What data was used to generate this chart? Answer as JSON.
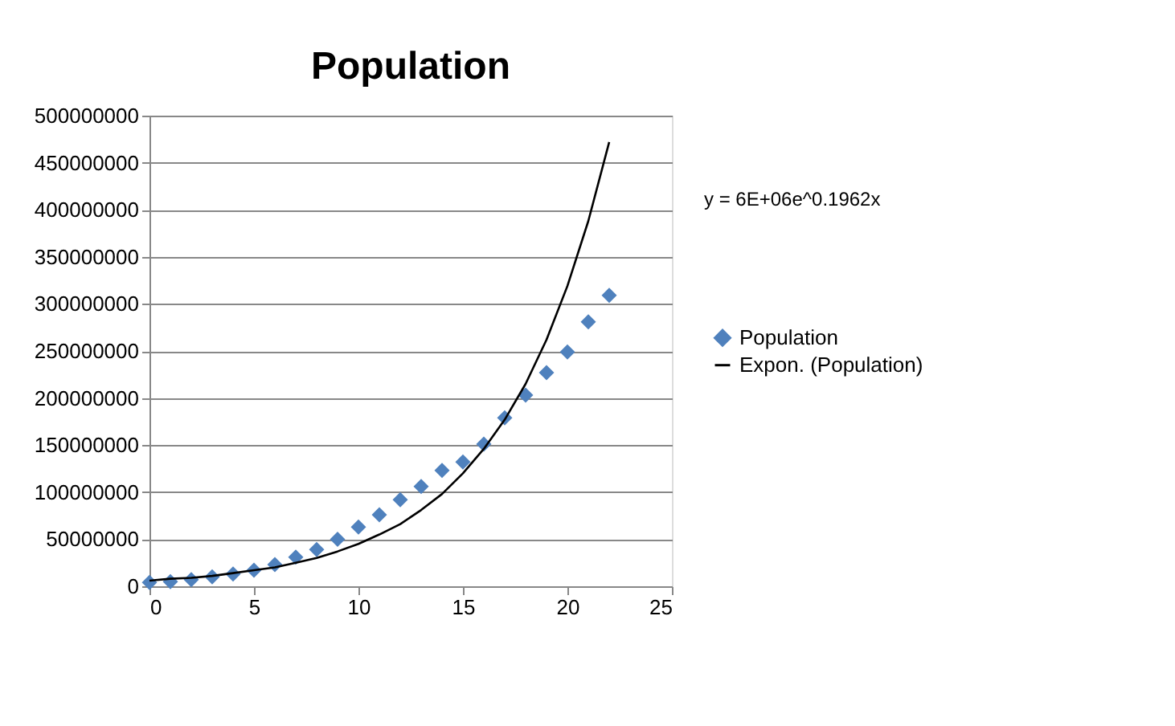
{
  "chart_data": {
    "type": "scatter",
    "title": "Population",
    "x": [
      0,
      1,
      2,
      3,
      4,
      5,
      6,
      7,
      8,
      9,
      10,
      11,
      12,
      13,
      14,
      15,
      16,
      17,
      18,
      19,
      20,
      21,
      22
    ],
    "series": [
      {
        "name": "Population",
        "color": "#4f81bd",
        "marker": "diamond",
        "values": [
          4000000,
          5000000,
          7000000,
          10000000,
          13000000,
          17000000,
          23000000,
          31000000,
          39000000,
          50000000,
          63000000,
          76000000,
          92000000,
          106000000,
          123000000,
          132000000,
          151000000,
          179000000,
          203000000,
          227000000,
          249000000,
          281000000,
          309000000
        ]
      },
      {
        "name": "Expon. (Population)",
        "type": "line",
        "color": "#000000",
        "marker": "none",
        "line_style": "solid",
        "x": [
          0,
          1,
          2,
          3,
          4,
          5,
          6,
          7,
          8,
          9,
          10,
          11,
          12,
          13,
          14,
          15,
          16,
          17,
          18,
          19,
          20,
          21,
          22
        ],
        "values": [
          6000000,
          8000000,
          9000000,
          11000000,
          14000000,
          17000000,
          20000000,
          25000000,
          30000000,
          37000000,
          45000000,
          55000000,
          66000000,
          81000000,
          98000000,
          120000000,
          146000000,
          177000000,
          215000000,
          262000000,
          319000000,
          388000000,
          472000000
        ]
      }
    ],
    "xlim": [
      0,
      25
    ],
    "xticks": [
      0,
      5,
      10,
      15,
      20,
      25
    ],
    "ylim": [
      0,
      500000000
    ],
    "yticks": [
      0,
      50000000,
      100000000,
      150000000,
      200000000,
      250000000,
      300000000,
      350000000,
      400000000,
      450000000,
      500000000
    ],
    "grid": "y",
    "legend": "right",
    "annotations": [
      "y = 6E+06e^0.1962x"
    ]
  }
}
